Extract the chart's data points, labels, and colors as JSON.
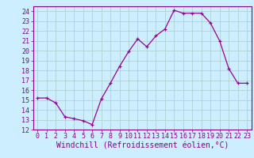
{
  "x": [
    0,
    1,
    2,
    3,
    4,
    5,
    6,
    7,
    8,
    9,
    10,
    11,
    12,
    13,
    14,
    15,
    16,
    17,
    18,
    19,
    20,
    21,
    22,
    23
  ],
  "y": [
    15.2,
    15.2,
    14.7,
    13.3,
    13.1,
    12.9,
    12.5,
    15.1,
    16.7,
    18.4,
    19.9,
    21.2,
    20.4,
    21.5,
    22.2,
    24.1,
    23.8,
    23.8,
    23.8,
    22.8,
    21.0,
    18.2,
    16.7,
    16.7
  ],
  "xlim": [
    -0.5,
    23.5
  ],
  "ylim": [
    12,
    24.5
  ],
  "yticks": [
    12,
    13,
    14,
    15,
    16,
    17,
    18,
    19,
    20,
    21,
    22,
    23,
    24
  ],
  "xticks": [
    0,
    1,
    2,
    3,
    4,
    5,
    6,
    7,
    8,
    9,
    10,
    11,
    12,
    13,
    14,
    15,
    16,
    17,
    18,
    19,
    20,
    21,
    22,
    23
  ],
  "xlabel": "Windchill (Refroidissement éolien,°C)",
  "line_color": "#990099",
  "marker": "+",
  "bg_color": "#cceeff",
  "grid_color": "#aacccc",
  "tick_label_color": "#880088",
  "xlabel_color": "#880088",
  "axis_color": "#880088",
  "fontsize_tick": 6.0,
  "fontsize_xlabel": 7.0
}
